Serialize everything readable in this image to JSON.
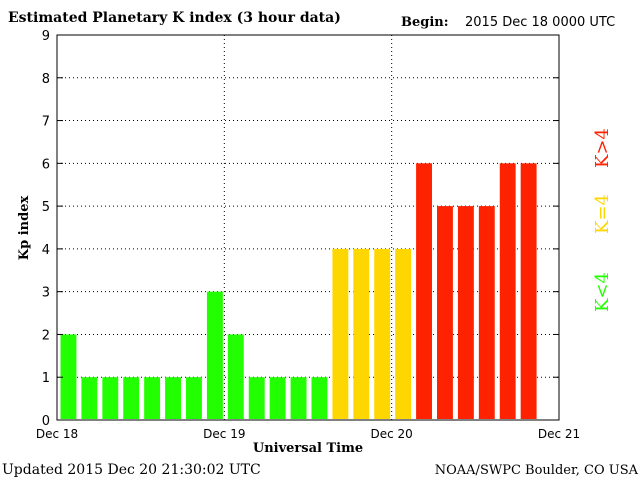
{
  "header": {
    "title": "Estimated Planetary K index (3 hour data)",
    "begin_label": "Begin:",
    "begin_value": "2015 Dec 18 0000 UTC"
  },
  "footer": {
    "updated": "Updated 2015 Dec 20 21:30:02 UTC",
    "source": "NOAA/SWPC Boulder, CO USA"
  },
  "legend": {
    "low": "K<4",
    "mid": "K=4",
    "high": "K>4"
  },
  "colors": {
    "low": "#22ff00",
    "mid": "#ffd700",
    "high": "#ff2200"
  },
  "chart_data": {
    "type": "bar",
    "title": "Estimated Planetary K index (3 hour data)",
    "xlabel": "Universal Time",
    "ylabel": "Kp index",
    "ylim": [
      0,
      9
    ],
    "yticks": [
      "0",
      "1",
      "2",
      "3",
      "4",
      "5",
      "6",
      "7",
      "8",
      "9"
    ],
    "x_tick_labels": [
      "Dec 18",
      "Dec 19",
      "Dec 20",
      "Dec 21"
    ],
    "interval_hours": 3,
    "grid": true,
    "values": [
      2,
      1,
      1,
      1,
      1,
      1,
      1,
      3,
      2,
      1,
      1,
      1,
      1,
      4,
      4,
      4,
      4,
      6,
      5,
      5,
      5,
      6,
      6
    ]
  }
}
